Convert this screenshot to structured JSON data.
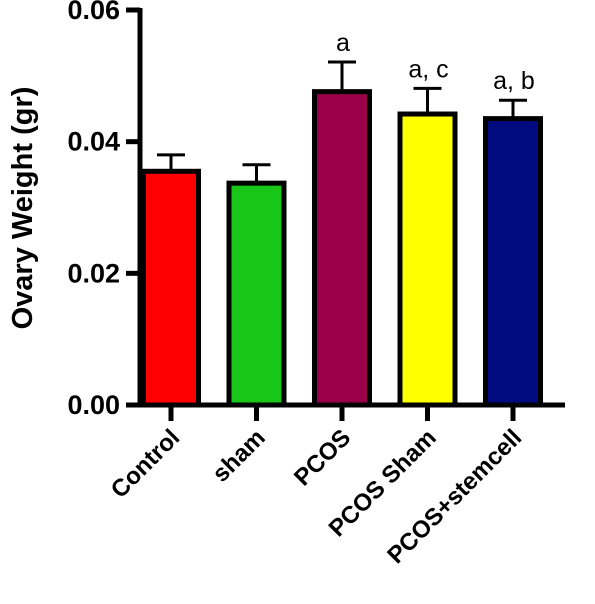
{
  "chart_data": {
    "type": "bar",
    "title": "",
    "xlabel": "",
    "ylabel": "Ovary Weight (gr)",
    "ylim": [
      0,
      0.06
    ],
    "yticks": [
      0.0,
      0.02,
      0.04,
      0.06
    ],
    "ytick_labels": [
      "0.00",
      "0.02",
      "0.04",
      "0.06"
    ],
    "grid": false,
    "legend": "none",
    "categories": [
      "Control",
      "sham",
      "PCOS",
      "PCOS Sham",
      "PCOS+stemcell"
    ],
    "values": [
      0.0355,
      0.0337,
      0.0476,
      0.0442,
      0.0435
    ],
    "error_upper": [
      0.038,
      0.0365,
      0.0521,
      0.0481,
      0.0463
    ],
    "colors": [
      "#ff0000",
      "#17c617",
      "#990049",
      "#ffff00",
      "#020a80"
    ],
    "significance_labels": [
      "",
      "",
      "a",
      "a, c",
      "a, b"
    ]
  }
}
